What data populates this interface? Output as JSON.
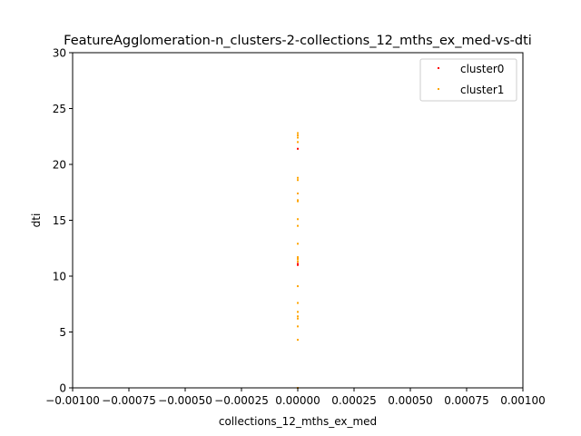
{
  "chart_data": {
    "type": "scatter",
    "title": "FeatureAgglomeration-n_clusters-2-collections_12_mths_ex_med-vs-dti",
    "xlabel": "collections_12_mths_ex_med",
    "ylabel": "dti",
    "xlim": [
      -0.001,
      0.001
    ],
    "ylim": [
      0,
      30
    ],
    "x_ticks": [
      -0.001,
      -0.00075,
      -0.0005,
      -0.00025,
      0.0,
      0.00025,
      0.0005,
      0.00075,
      0.001
    ],
    "x_tick_labels": [
      "−0.00100",
      "−0.00075",
      "−0.00050",
      "−0.00025",
      "0.00000",
      "0.00025",
      "0.00050",
      "0.00075",
      "0.00100"
    ],
    "y_ticks": [
      0,
      5,
      10,
      15,
      20,
      25,
      30
    ],
    "y_tick_labels": [
      "0",
      "5",
      "10",
      "15",
      "20",
      "25",
      "30"
    ],
    "grid": false,
    "legend_position": "top-right",
    "series": [
      {
        "name": "cluster0",
        "color": "#ff0000",
        "x": [
          0,
          0,
          0
        ],
        "y": [
          21.4,
          11.1,
          11.0
        ]
      },
      {
        "name": "cluster1",
        "color": "#ffa500",
        "x": [
          0,
          0,
          0,
          0,
          0,
          0,
          0,
          0,
          0,
          0,
          0,
          0,
          0,
          0,
          0,
          0,
          0,
          0,
          0,
          0,
          0,
          0,
          0,
          0
        ],
        "y": [
          22.8,
          22.6,
          22.4,
          22.0,
          18.8,
          18.6,
          17.4,
          16.8,
          16.7,
          15.1,
          14.5,
          12.9,
          11.7,
          11.6,
          11.5,
          11.3,
          9.1,
          7.6,
          6.8,
          6.4,
          6.2,
          5.5,
          4.3,
          0.0
        ]
      }
    ]
  }
}
